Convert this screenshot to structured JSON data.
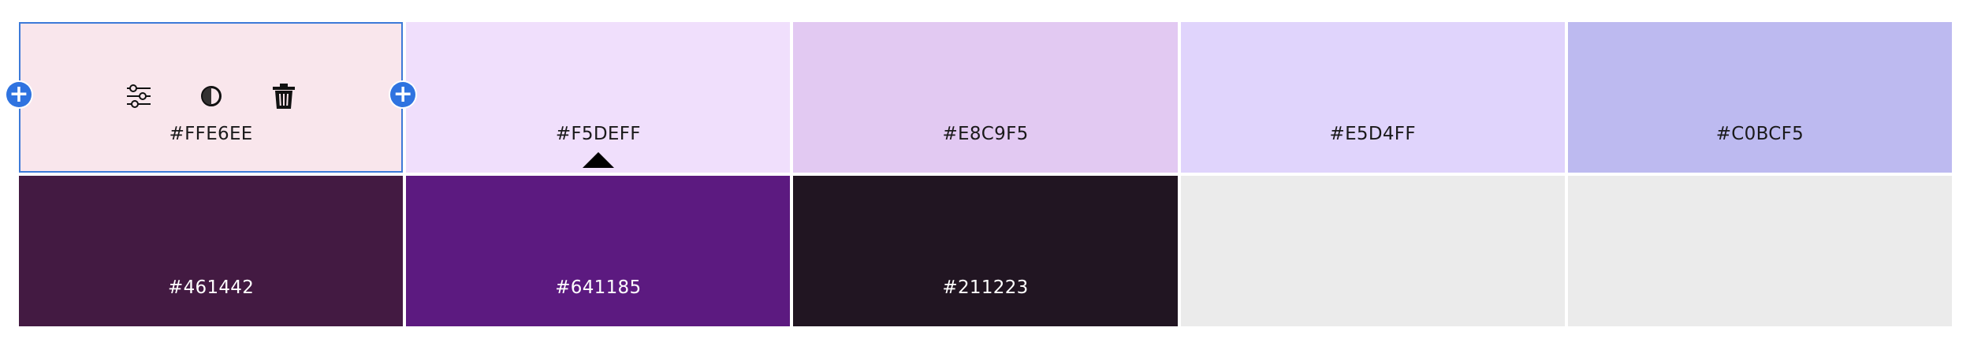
{
  "swatches": [
    {
      "hex": "#FFE6EE",
      "label": "#FFE6EE",
      "text": "light",
      "selected": true
    },
    {
      "hex": "#F5DEFF",
      "label": "#F5DEFF",
      "text": "light"
    },
    {
      "hex": "#E8C9F5",
      "label": "#E8C9F5",
      "text": "light"
    },
    {
      "hex": "#E5D4FF",
      "label": "#E5D4FF",
      "text": "light"
    },
    {
      "hex": "#C0BCF5",
      "label": "#C0BCF5",
      "text": "light"
    },
    {
      "hex": "#461442",
      "label": "#461442",
      "text": "dark"
    },
    {
      "hex": "#641185",
      "label": "#641185",
      "text": "dark"
    },
    {
      "hex": "#211223",
      "label": "#211223",
      "text": "dark"
    },
    {
      "hex": "#EBEBEB",
      "label": "",
      "text": "light"
    },
    {
      "hex": "#EBEBEB",
      "label": "",
      "text": "light"
    }
  ],
  "toolbar": {
    "icons": [
      "adjust-sliders-icon",
      "contrast-icon",
      "trash-icon"
    ],
    "add_icon": "plus-icon"
  },
  "colors": {
    "selection_outline": "#3D7AD8",
    "add_button": "#2F73E0"
  }
}
